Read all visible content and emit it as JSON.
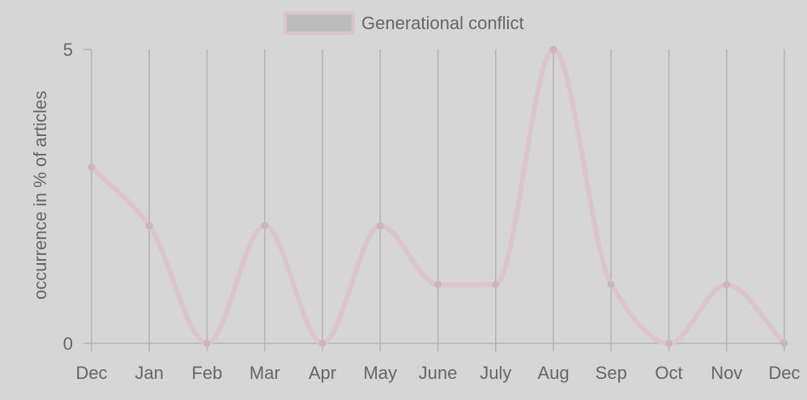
{
  "chart_data": {
    "type": "line",
    "title": "",
    "xlabel": "",
    "ylabel": "occurrence in % of articles",
    "categories": [
      "Dec",
      "Jan",
      "Feb",
      "Mar",
      "Apr",
      "May",
      "June",
      "July",
      "Aug",
      "Sep",
      "Oct",
      "Nov",
      "Dec"
    ],
    "series": [
      {
        "name": "Generational conflict",
        "values": [
          3,
          2,
          0,
          2,
          0,
          2,
          1,
          1,
          5,
          1,
          0,
          1,
          0
        ],
        "color": "#dcc6cc",
        "point_color": "#cbb6bc"
      }
    ],
    "ylim": [
      0,
      5
    ],
    "yticks": [
      "0",
      "5"
    ],
    "grid": "vertical",
    "legend": "top-center",
    "colors": {
      "background": "#d6d6d6",
      "grid": "#b3b3b3",
      "text": "#666666",
      "legend_fill": "#bcbcbc",
      "legend_border": "#d9c5ca"
    }
  }
}
